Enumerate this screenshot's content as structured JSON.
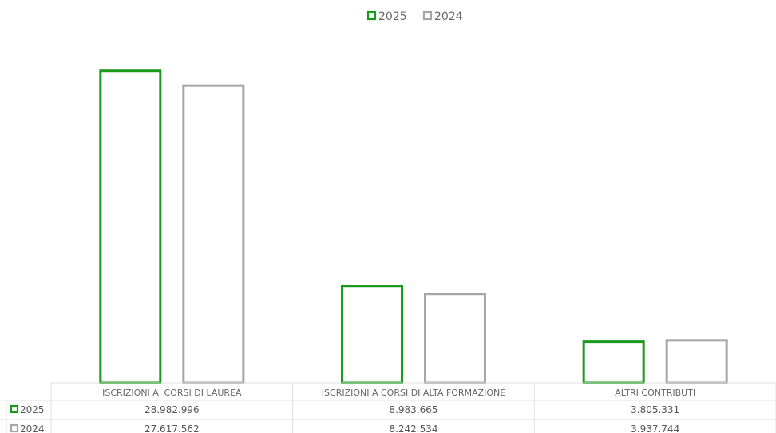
{
  "chart_data": {
    "type": "bar",
    "categories": [
      "ISCRIZIONI AI CORSI DI LAUREA",
      "ISCRIZIONI A CORSI DI ALTA FORMAZIONE",
      "ALTRI CONTRIBUTI"
    ],
    "series": [
      {
        "name": "2025",
        "values": [
          28982996,
          8983665,
          3805331
        ],
        "value_labels": [
          "28.982.996",
          "8.983.665",
          "3.805.331"
        ],
        "color": "#1a9a1a"
      },
      {
        "name": "2024",
        "values": [
          27617562,
          8242534,
          3937744
        ],
        "value_labels": [
          "27.617.562",
          "8.242.534",
          "3.937.744"
        ],
        "color": "#a6a6a6"
      }
    ],
    "ylim": [
      0,
      30000000
    ],
    "grid": false,
    "legend": "top-center",
    "data_table": true
  }
}
